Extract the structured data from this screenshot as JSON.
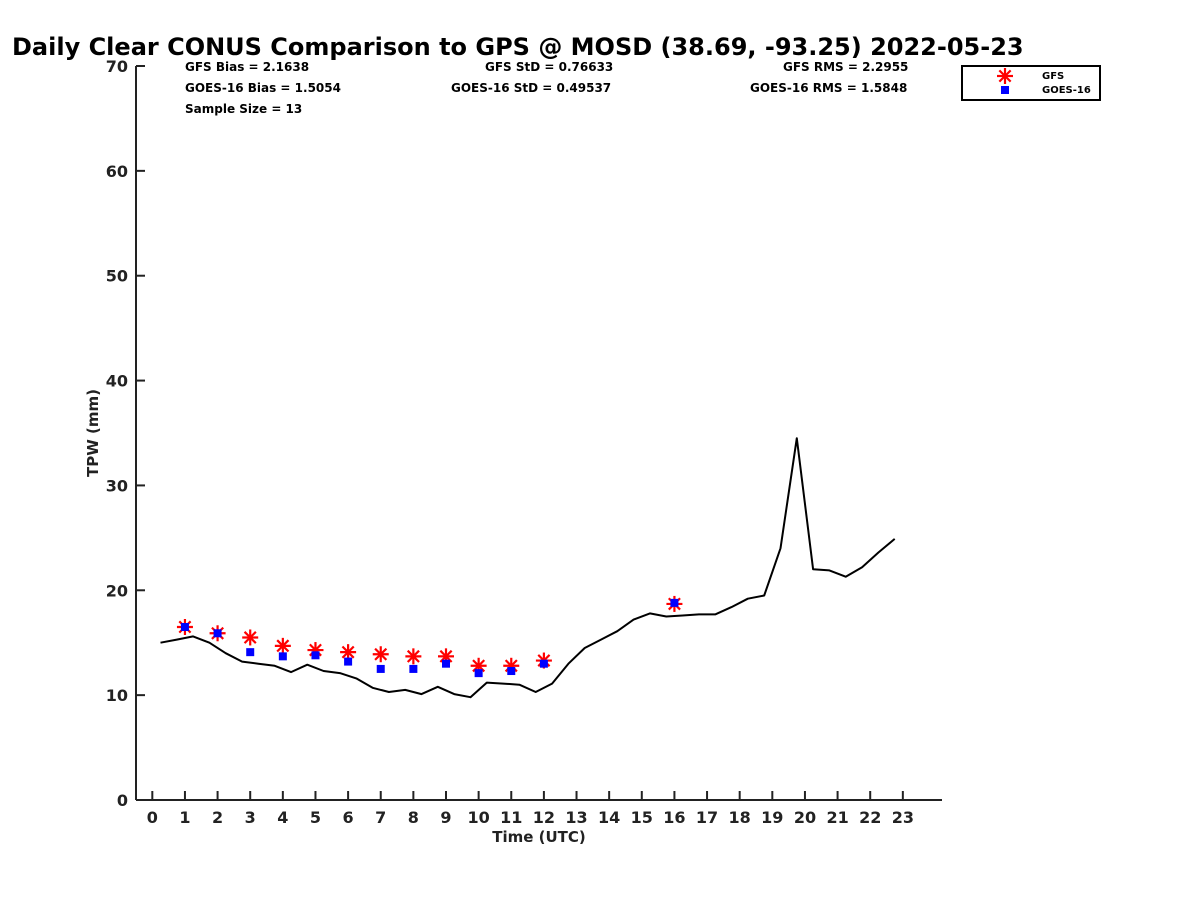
{
  "chart_data": {
    "type": "line",
    "title": "Daily Clear CONUS Comparison to GPS @ MOSD (38.69, -93.25) 2022-05-23",
    "xlabel": "Time (UTC)",
    "ylabel": "TPW (mm)",
    "xlim": [
      -0.5,
      24.2
    ],
    "ylim": [
      0,
      70
    ],
    "x_ticks": [
      0,
      1,
      2,
      3,
      4,
      5,
      6,
      7,
      8,
      9,
      10,
      11,
      12,
      13,
      14,
      15,
      16,
      17,
      18,
      19,
      20,
      21,
      22,
      23
    ],
    "y_ticks": [
      0,
      10,
      20,
      30,
      40,
      50,
      60,
      70
    ],
    "stats": {
      "gfs_bias": "GFS Bias = 2.1638",
      "gfs_std": "GFS StD = 0.76633",
      "gfs_rms": "GFS RMS = 2.2955",
      "goes_bias": "GOES-16 Bias = 1.5054",
      "goes_std": "GOES-16 StD = 0.49537",
      "goes_rms": "GOES-16 RMS = 1.5848",
      "sample_size": "Sample Size = 13"
    },
    "legend": {
      "position": "top-right",
      "entries": [
        "GFS",
        "GOES-16"
      ]
    },
    "colors": {
      "gps": "#000000",
      "gfs": "#ff0000",
      "goes": "#0000ff"
    },
    "series": [
      {
        "name": "GPS",
        "style": "line",
        "x": [
          0.25,
          0.75,
          1.25,
          1.75,
          2.25,
          2.75,
          3.25,
          3.75,
          4.25,
          4.75,
          5.25,
          5.75,
          6.25,
          6.75,
          7.25,
          7.75,
          8.25,
          8.75,
          9.25,
          9.75,
          10.25,
          10.75,
          11.25,
          11.75,
          12.25,
          12.75,
          13.25,
          13.75,
          14.25,
          14.75,
          15.25,
          15.75,
          16.25,
          16.75,
          17.25,
          17.75,
          18.25,
          18.75,
          19.25,
          19.75,
          20.25,
          20.75,
          21.25,
          21.75,
          22.25,
          22.75
        ],
        "y": [
          15.0,
          15.3,
          15.6,
          15.0,
          14.0,
          13.2,
          13.0,
          12.8,
          12.2,
          12.9,
          12.3,
          12.1,
          11.6,
          10.7,
          10.3,
          10.5,
          10.1,
          10.8,
          10.1,
          9.8,
          11.2,
          11.1,
          11.0,
          10.3,
          11.1,
          13.0,
          14.5,
          15.3,
          16.1,
          17.2,
          17.8,
          17.5,
          17.6,
          17.7,
          17.7,
          18.4,
          19.2,
          19.5,
          24.0,
          34.5,
          22.0,
          21.9,
          21.3,
          22.2,
          23.6,
          24.9
        ]
      },
      {
        "name": "GFS",
        "style": "star",
        "x": [
          1,
          2,
          3,
          4,
          5,
          6,
          7,
          8,
          9,
          10,
          11,
          12,
          16
        ],
        "y": [
          16.5,
          15.9,
          15.5,
          14.7,
          14.3,
          14.1,
          13.9,
          13.7,
          13.7,
          12.8,
          12.8,
          13.3,
          18.7
        ]
      },
      {
        "name": "GOES-16",
        "style": "square",
        "x": [
          1,
          2,
          3,
          4,
          5,
          6,
          7,
          8,
          9,
          10,
          11,
          12,
          16
        ],
        "y": [
          16.5,
          15.9,
          14.1,
          13.7,
          13.8,
          13.2,
          12.5,
          12.5,
          13.0,
          12.1,
          12.3,
          13.0,
          18.8
        ]
      }
    ]
  }
}
